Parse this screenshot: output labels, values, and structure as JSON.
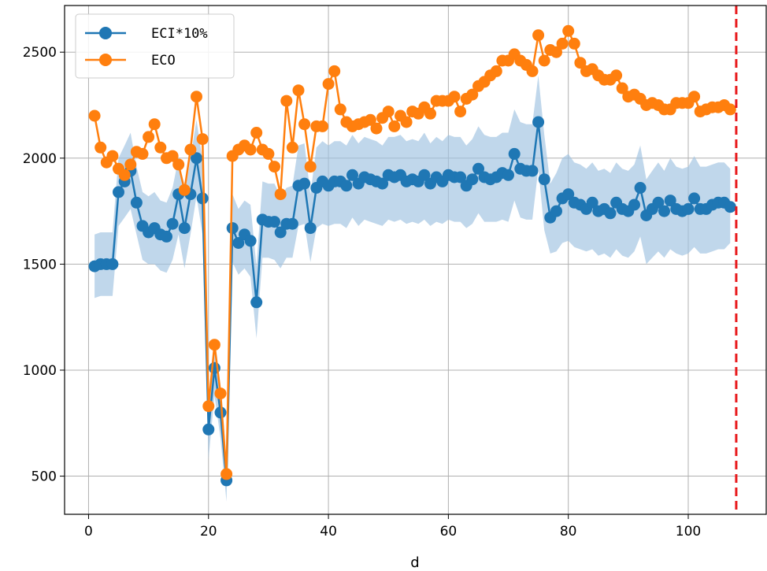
{
  "chart_data": {
    "type": "line",
    "xlabel": "d",
    "ylabel": "",
    "title": "",
    "xlim": [
      -4,
      113
    ],
    "ylim": [
      320,
      2720
    ],
    "xticks": [
      0,
      20,
      40,
      60,
      80,
      100
    ],
    "yticks": [
      500,
      1000,
      1500,
      2000,
      2500
    ],
    "grid": true,
    "legend_position": "top-left",
    "vline": {
      "x": 108,
      "color": "#e8191c",
      "style": "dashed"
    },
    "band": {
      "series": "ECI*10%",
      "color": "#9ec2e0",
      "x": [
        1,
        2,
        3,
        4,
        5,
        6,
        7,
        8,
        9,
        10,
        11,
        12,
        13,
        14,
        15,
        16,
        17,
        18,
        19,
        20,
        21,
        22,
        23,
        24,
        25,
        26,
        27,
        28,
        29,
        30,
        31,
        32,
        33,
        34,
        35,
        36,
        37,
        38,
        39,
        40,
        41,
        42,
        43,
        44,
        45,
        46,
        47,
        48,
        49,
        50,
        51,
        52,
        53,
        54,
        55,
        56,
        57,
        58,
        59,
        60,
        61,
        62,
        63,
        64,
        65,
        66,
        67,
        68,
        69,
        70,
        71,
        72,
        73,
        74,
        75,
        76,
        77,
        78,
        79,
        80,
        81,
        82,
        83,
        84,
        85,
        86,
        87,
        88,
        89,
        90,
        91,
        92,
        93,
        94,
        95,
        96,
        97,
        98,
        99,
        100,
        101,
        102,
        103,
        104,
        105,
        106,
        107
      ],
      "lower": [
        1340,
        1350,
        1350,
        1350,
        1680,
        1720,
        1760,
        1640,
        1520,
        1500,
        1500,
        1470,
        1460,
        1520,
        1640,
        1480,
        1640,
        1820,
        1640,
        580,
        880,
        680,
        380,
        1510,
        1450,
        1480,
        1440,
        1150,
        1530,
        1530,
        1520,
        1480,
        1530,
        1530,
        1680,
        1690,
        1510,
        1670,
        1690,
        1680,
        1690,
        1690,
        1670,
        1720,
        1680,
        1710,
        1700,
        1690,
        1680,
        1710,
        1700,
        1710,
        1690,
        1700,
        1690,
        1710,
        1680,
        1700,
        1690,
        1710,
        1700,
        1700,
        1670,
        1690,
        1740,
        1700,
        1700,
        1700,
        1710,
        1700,
        1800,
        1720,
        1710,
        1710,
        1950,
        1660,
        1550,
        1560,
        1600,
        1610,
        1580,
        1570,
        1560,
        1570,
        1540,
        1550,
        1530,
        1570,
        1540,
        1530,
        1560,
        1630,
        1500,
        1530,
        1560,
        1530,
        1570,
        1550,
        1540,
        1550,
        1580,
        1550,
        1550,
        1560,
        1570,
        1570,
        1600
      ],
      "upper": [
        1640,
        1650,
        1650,
        1650,
        2000,
        2060,
        2120,
        1960,
        1840,
        1820,
        1840,
        1800,
        1790,
        1860,
        2000,
        1820,
        2000,
        2180,
        1990,
        860,
        1140,
        930,
        580,
        1830,
        1760,
        1800,
        1780,
        1490,
        1890,
        1880,
        1880,
        1820,
        1860,
        1870,
        2060,
        2070,
        1830,
        2050,
        2080,
        2060,
        2080,
        2080,
        2060,
        2110,
        2070,
        2100,
        2090,
        2080,
        2060,
        2100,
        2100,
        2110,
        2080,
        2090,
        2080,
        2120,
        2070,
        2100,
        2080,
        2110,
        2100,
        2100,
        2060,
        2090,
        2150,
        2110,
        2100,
        2100,
        2120,
        2120,
        2230,
        2170,
        2160,
        2160,
        2390,
        2110,
        1880,
        1930,
        2000,
        2020,
        1980,
        1970,
        1950,
        1980,
        1940,
        1950,
        1930,
        1980,
        1950,
        1940,
        1970,
        2060,
        1900,
        1940,
        1980,
        1940,
        2000,
        1960,
        1950,
        1960,
        2010,
        1960,
        1960,
        1970,
        1980,
        1980,
        1950
      ]
    },
    "series": [
      {
        "name": "ECI*10%",
        "color": "#1f77b4",
        "x": [
          1,
          2,
          3,
          4,
          5,
          6,
          7,
          8,
          9,
          10,
          11,
          12,
          13,
          14,
          15,
          16,
          17,
          18,
          19,
          20,
          21,
          22,
          23,
          24,
          25,
          26,
          27,
          28,
          29,
          30,
          31,
          32,
          33,
          34,
          35,
          36,
          37,
          38,
          39,
          40,
          41,
          42,
          43,
          44,
          45,
          46,
          47,
          48,
          49,
          50,
          51,
          52,
          53,
          54,
          55,
          56,
          57,
          58,
          59,
          60,
          61,
          62,
          63,
          64,
          65,
          66,
          67,
          68,
          69,
          70,
          71,
          72,
          73,
          74,
          75,
          76,
          77,
          78,
          79,
          80,
          81,
          82,
          83,
          84,
          85,
          86,
          87,
          88,
          89,
          90,
          91,
          92,
          93,
          94,
          95,
          96,
          97,
          98,
          99,
          100,
          101,
          102,
          103,
          104,
          105,
          106,
          107
        ],
        "values": [
          1490,
          1500,
          1500,
          1500,
          1840,
          1890,
          1940,
          1790,
          1680,
          1650,
          1670,
          1640,
          1630,
          1690,
          1830,
          1670,
          1830,
          2000,
          1810,
          720,
          1010,
          800,
          480,
          1670,
          1600,
          1640,
          1610,
          1320,
          1710,
          1700,
          1700,
          1650,
          1690,
          1690,
          1870,
          1880,
          1670,
          1860,
          1890,
          1870,
          1890,
          1890,
          1870,
          1920,
          1880,
          1910,
          1900,
          1890,
          1880,
          1920,
          1910,
          1920,
          1890,
          1900,
          1890,
          1920,
          1880,
          1910,
          1890,
          1920,
          1910,
          1910,
          1870,
          1900,
          1950,
          1910,
          1900,
          1910,
          1930,
          1920,
          2020,
          1950,
          1940,
          1940,
          2170,
          1900,
          1720,
          1750,
          1810,
          1830,
          1790,
          1780,
          1760,
          1790,
          1750,
          1760,
          1740,
          1790,
          1760,
          1750,
          1780,
          1860,
          1730,
          1760,
          1790,
          1750,
          1800,
          1760,
          1750,
          1760,
          1810,
          1760,
          1760,
          1780,
          1790,
          1790,
          1770
        ]
      },
      {
        "name": "ECO",
        "color": "#ff7f0e",
        "x": [
          1,
          2,
          3,
          4,
          5,
          6,
          7,
          8,
          9,
          10,
          11,
          12,
          13,
          14,
          15,
          16,
          17,
          18,
          19,
          20,
          21,
          22,
          23,
          24,
          25,
          26,
          27,
          28,
          29,
          30,
          31,
          32,
          33,
          34,
          35,
          36,
          37,
          38,
          39,
          40,
          41,
          42,
          43,
          44,
          45,
          46,
          47,
          48,
          49,
          50,
          51,
          52,
          53,
          54,
          55,
          56,
          57,
          58,
          59,
          60,
          61,
          62,
          63,
          64,
          65,
          66,
          67,
          68,
          69,
          70,
          71,
          72,
          73,
          74,
          75,
          76,
          77,
          78,
          79,
          80,
          81,
          82,
          83,
          84,
          85,
          86,
          87,
          88,
          89,
          90,
          91,
          92,
          93,
          94,
          95,
          96,
          97,
          98,
          99,
          100,
          101,
          102,
          103,
          104,
          105,
          106,
          107
        ],
        "values": [
          2200,
          2050,
          1980,
          2010,
          1950,
          1920,
          1970,
          2030,
          2020,
          2100,
          2160,
          2050,
          2000,
          2010,
          1970,
          1850,
          2040,
          2290,
          2090,
          830,
          1120,
          890,
          510,
          2010,
          2040,
          2060,
          2040,
          2120,
          2040,
          2020,
          1960,
          1830,
          2270,
          2050,
          2320,
          2160,
          1960,
          2150,
          2150,
          2350,
          2410,
          2230,
          2170,
          2150,
          2160,
          2170,
          2180,
          2140,
          2190,
          2220,
          2150,
          2200,
          2170,
          2220,
          2210,
          2240,
          2210,
          2270,
          2270,
          2270,
          2290,
          2220,
          2280,
          2300,
          2340,
          2360,
          2390,
          2410,
          2460,
          2460,
          2490,
          2460,
          2440,
          2410,
          2580,
          2460,
          2510,
          2500,
          2540,
          2600,
          2540,
          2450,
          2410,
          2420,
          2390,
          2370,
          2370,
          2390,
          2330,
          2290,
          2300,
          2280,
          2250,
          2260,
          2250,
          2230,
          2230,
          2260,
          2260,
          2260,
          2290,
          2220,
          2230,
          2240,
          2240,
          2250,
          2230
        ]
      }
    ]
  }
}
